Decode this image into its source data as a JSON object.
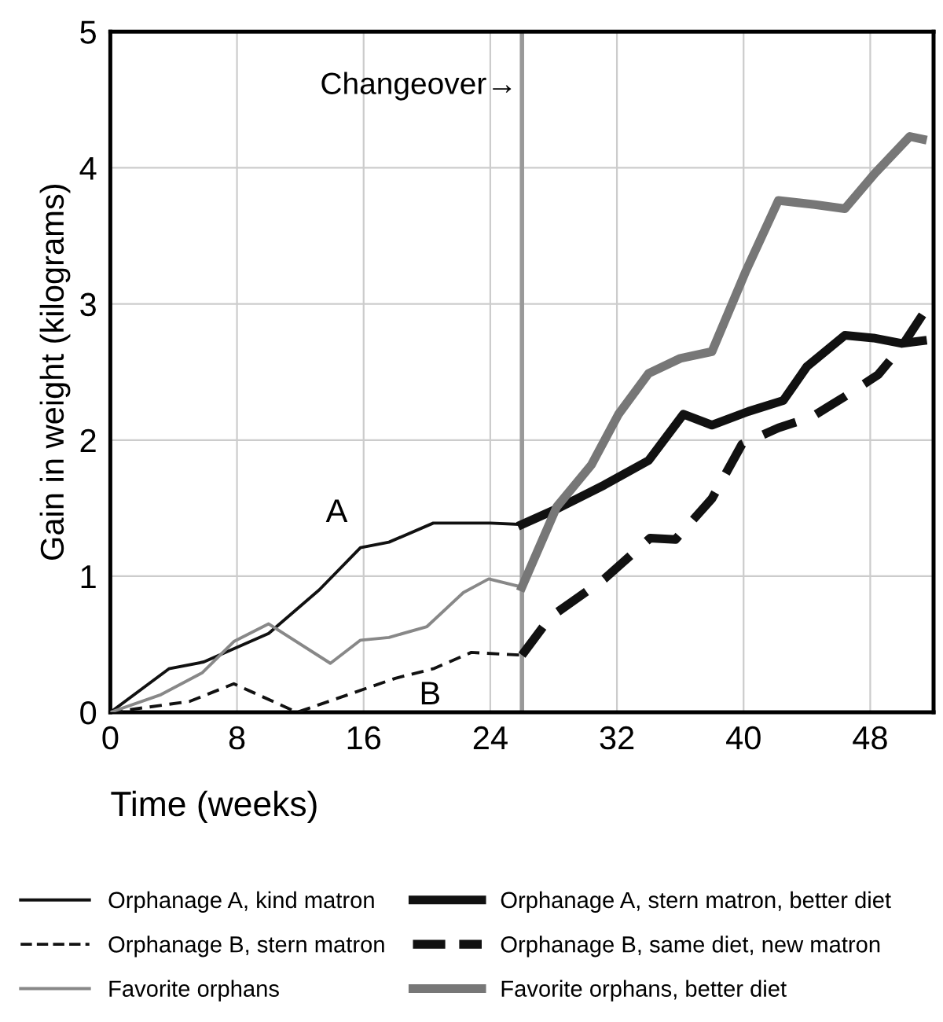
{
  "chart_data": {
    "type": "line",
    "xlabel": "Time (weeks)",
    "ylabel": "Gain in weight (kilograms)",
    "xlim": [
      0,
      52
    ],
    "ylim": [
      0,
      5
    ],
    "xticks": [
      0,
      8,
      16,
      24,
      32,
      40,
      48
    ],
    "yticks": [
      0,
      1,
      2,
      3,
      4,
      5
    ],
    "grid": true,
    "legend": "bottom",
    "ref_lines": [
      {
        "axis": "x",
        "value": 26,
        "label": "Changeover→",
        "color": "#999999",
        "line_style": "solid"
      }
    ],
    "annotations": [
      "A",
      "B"
    ],
    "series": [
      {
        "name": "Orphanage A, kind matron",
        "color": "#111111",
        "line_style": "solid",
        "x": [
          0,
          3.7,
          5.9,
          10,
          13.2,
          15.8,
          17.6,
          20.4,
          24,
          26
        ],
        "values": [
          0,
          0.32,
          0.37,
          0.58,
          0.9,
          1.21,
          1.25,
          1.39,
          1.39,
          1.38
        ]
      },
      {
        "name": "Orphanage B, stern matron",
        "color": "#111111",
        "line_style": "dashed",
        "x": [
          0,
          5,
          7.8,
          11.8,
          18,
          20.4,
          22.8,
          26
        ],
        "values": [
          0,
          0.08,
          0.21,
          0,
          0.25,
          0.32,
          0.44,
          0.42
        ]
      },
      {
        "name": "Favorite orphans",
        "color": "#888888",
        "line_style": "solid",
        "x": [
          0,
          3.2,
          5.8,
          7.8,
          10,
          13.9,
          15.8,
          17.6,
          20,
          22.3,
          23.9,
          26
        ],
        "values": [
          0,
          0.13,
          0.29,
          0.52,
          0.65,
          0.36,
          0.53,
          0.55,
          0.63,
          0.88,
          0.98,
          0.92
        ]
      },
      {
        "name": "Orphanage A, stern matron, better diet",
        "color": "#111111",
        "line_style": "solid",
        "x": [
          26,
          28.3,
          31.2,
          34,
          36.2,
          38,
          40.3,
          42.5,
          44,
          46.4,
          48.2,
          50,
          51.3
        ],
        "values": [
          1.38,
          1.5,
          1.67,
          1.85,
          2.19,
          2.11,
          2.21,
          2.29,
          2.54,
          2.77,
          2.75,
          2.71,
          2.73
        ]
      },
      {
        "name": "Orphanage B, same diet, new matron",
        "color": "#111111",
        "line_style": "dashed",
        "x": [
          26,
          27.8,
          31.2,
          34.1,
          35.7,
          38,
          39.9,
          42.2,
          44.3,
          46.4,
          48.5,
          50,
          51.3
        ],
        "values": [
          0.42,
          0.7,
          0.98,
          1.28,
          1.27,
          1.57,
          1.97,
          2.09,
          2.17,
          2.32,
          2.48,
          2.69,
          2.92
        ]
      },
      {
        "name": "Favorite orphans, better diet",
        "color": "#777777",
        "line_style": "solid",
        "x": [
          26,
          28.2,
          30.4,
          32.1,
          34,
          36,
          38,
          40.1,
          42.2,
          44.5,
          46.4,
          48.3,
          50.5,
          51.3
        ],
        "values": [
          0.92,
          1.51,
          1.82,
          2.19,
          2.49,
          2.6,
          2.65,
          3.23,
          3.76,
          3.73,
          3.7,
          3.96,
          4.23,
          4.21
        ]
      }
    ]
  }
}
